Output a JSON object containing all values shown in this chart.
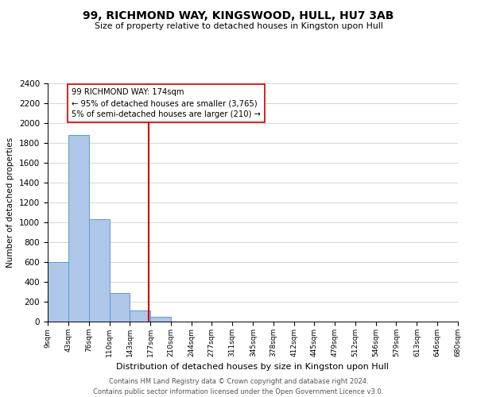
{
  "title": "99, RICHMOND WAY, KINGSWOOD, HULL, HU7 3AB",
  "subtitle": "Size of property relative to detached houses in Kingston upon Hull",
  "bar_edges": [
    9,
    43,
    76,
    110,
    143,
    177,
    210,
    244,
    277,
    311,
    345,
    378,
    412,
    445,
    479,
    512,
    546,
    579,
    613,
    646,
    680
  ],
  "bar_heights": [
    600,
    1880,
    1035,
    285,
    115,
    50,
    0,
    0,
    0,
    0,
    0,
    0,
    0,
    0,
    0,
    0,
    0,
    0,
    0,
    0
  ],
  "bar_color": "#aec6e8",
  "bar_edgecolor": "#5b9bd5",
  "property_value": 174,
  "vline_color": "#cc0000",
  "annotation_text_line1": "99 RICHMOND WAY: 174sqm",
  "annotation_text_line2": "← 95% of detached houses are smaller (3,765)",
  "annotation_text_line3": "5% of semi-detached houses are larger (210) →",
  "annotation_box_edgecolor": "#cc0000",
  "ylabel": "Number of detached properties",
  "xlabel": "Distribution of detached houses by size in Kingston upon Hull",
  "xlim_left": 9,
  "xlim_right": 680,
  "ylim_top": 2400,
  "yticks": [
    0,
    200,
    400,
    600,
    800,
    1000,
    1200,
    1400,
    1600,
    1800,
    2000,
    2200,
    2400
  ],
  "xtick_labels": [
    "9sqm",
    "43sqm",
    "76sqm",
    "110sqm",
    "143sqm",
    "177sqm",
    "210sqm",
    "244sqm",
    "277sqm",
    "311sqm",
    "345sqm",
    "378sqm",
    "412sqm",
    "445sqm",
    "479sqm",
    "512sqm",
    "546sqm",
    "579sqm",
    "613sqm",
    "646sqm",
    "680sqm"
  ],
  "xtick_positions": [
    9,
    43,
    76,
    110,
    143,
    177,
    210,
    244,
    277,
    311,
    345,
    378,
    412,
    445,
    479,
    512,
    546,
    579,
    613,
    646,
    680
  ],
  "footer_line1": "Contains HM Land Registry data © Crown copyright and database right 2024.",
  "footer_line2": "Contains public sector information licensed under the Open Government Licence v3.0.",
  "background_color": "#ffffff",
  "grid_color": "#d0d0d0"
}
